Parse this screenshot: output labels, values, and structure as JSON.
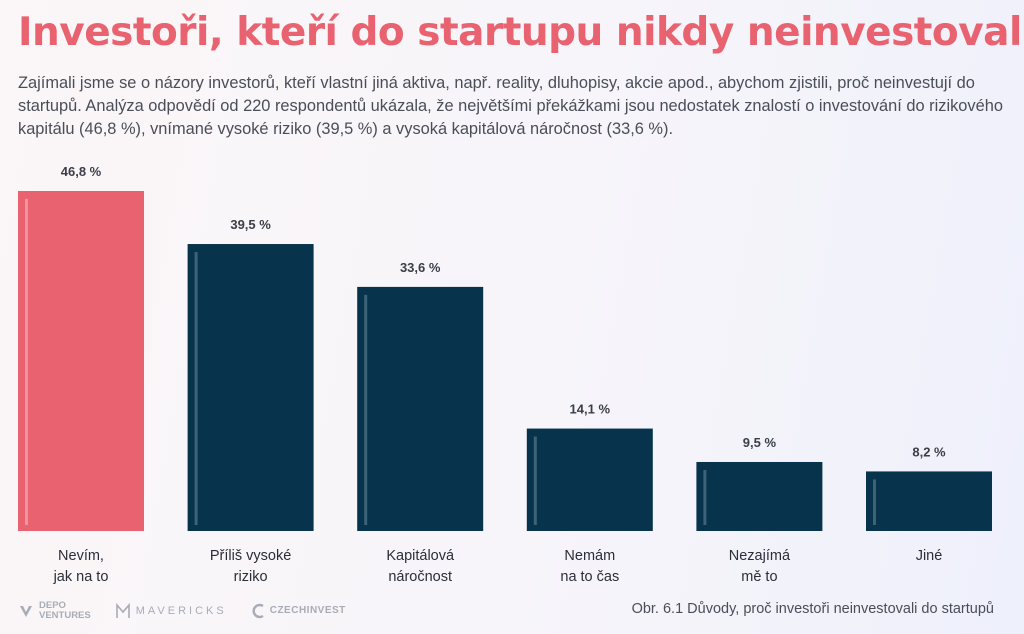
{
  "header": {
    "title": "Investoři, kteří do startupu nikdy neinvestovali",
    "intro": "Zajímali jsme se o názory investorů, kteří vlastní jiná aktiva, např. reality, dluhopisy, akcie apod., abychom zjistili, proč neinvestují do startupů. Analýza odpovědí od 220 respondentů ukázala, že největšími překážkami jsou nedostatek znalostí o investování do rizikového kapitálu (46,8 %), vnímané vysoké riziko (39,5 %) a vysoká kapitálová náročnost (33,6 %)."
  },
  "chart_data": {
    "type": "bar",
    "categories": [
      [
        "Nevím,",
        "jak na to"
      ],
      [
        "Příliš vysoké",
        "riziko"
      ],
      [
        "Kapitálová",
        "náročnost"
      ],
      [
        "Nemám",
        "na to čas"
      ],
      [
        "Nezajímá",
        "mě to"
      ],
      [
        "Jiné"
      ]
    ],
    "values": [
      46.8,
      39.5,
      33.6,
      14.1,
      9.5,
      8.2
    ],
    "value_labels": [
      "46,8 %",
      "39,5 %",
      "33,6 %",
      "14,1 %",
      "9,5 %",
      "8,2 %"
    ],
    "ylim": [
      0,
      46.8
    ],
    "highlight_index": 0,
    "colors": {
      "highlight": "#e8626f",
      "default": "#07344c",
      "accent_line_default": "#4a6f83",
      "accent_line_highlight": "#f0a0a8"
    },
    "grid": false
  },
  "footer": {
    "caption": "Obr. 6.1 Důvody, proč investoři neinvestovali do startupů",
    "logos": [
      {
        "icon": "depo-ventures-icon",
        "lines": [
          "DEPO",
          "VENTURES"
        ]
      },
      {
        "icon": "mavericks-icon",
        "lines": [
          "MAVERICKS"
        ]
      },
      {
        "icon": "czechinvest-icon",
        "lines": [
          "CZECHINVEST"
        ]
      }
    ]
  },
  "colors": {
    "title": "#e8626f",
    "text": "#4a4e58",
    "logo": "#a8acb6"
  }
}
